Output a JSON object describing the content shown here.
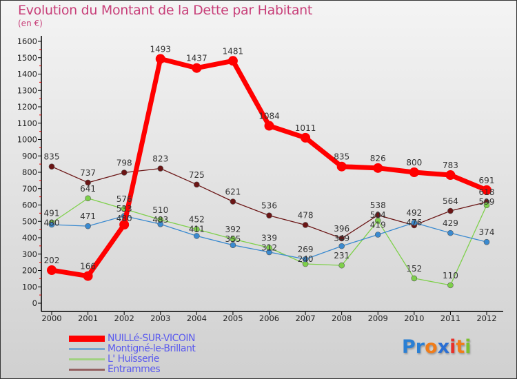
{
  "chart_data": {
    "type": "line",
    "title": "Evolution du Montant de la Dette par Habitant",
    "subtitle": "(en €)",
    "xlabel": "",
    "ylabel": "",
    "x": [
      "2000",
      "2001",
      "2002",
      "2003",
      "2004",
      "2005",
      "2006",
      "2007",
      "2008",
      "2009",
      "2010",
      "2011",
      "2012"
    ],
    "ylim": [
      0,
      1600
    ],
    "yticks": [
      0,
      100,
      200,
      300,
      400,
      500,
      600,
      700,
      800,
      900,
      1000,
      1100,
      1200,
      1300,
      1400,
      1500,
      1600
    ],
    "grid": false,
    "legend_position": "bottom-left",
    "series": [
      {
        "name": "NUILLé-SUR-VICOIN",
        "color": "#ff0000",
        "values": [
          202,
          166,
          480,
          1493,
          1437,
          1481,
          1084,
          1011,
          835,
          826,
          800,
          783,
          691
        ]
      },
      {
        "name": "Montigné-le-Brillant",
        "color": "#3a8ad0",
        "values": [
          480,
          471,
          533,
          483,
          411,
          355,
          312,
          269,
          349,
          419,
          492,
          429,
          374
        ]
      },
      {
        "name": "L' Huisserie",
        "color": "#7ed04a",
        "values": [
          491,
          641,
          576,
          510,
          452,
          392,
          339,
          240,
          231,
          504,
          152,
          110,
          599
        ]
      },
      {
        "name": "Entrammes",
        "color": "#6b1515",
        "values": [
          835,
          737,
          798,
          823,
          725,
          621,
          536,
          478,
          396,
          538,
          476,
          564,
          618
        ]
      }
    ]
  },
  "logo": {
    "text": "Proxiti",
    "letters": [
      "P",
      "r",
      "o",
      "x",
      "i",
      "t",
      "i"
    ],
    "colors": [
      "#2a7fd4",
      "#2a7fd4",
      "#f07c1a",
      "#2a6fd4",
      "#e8302a",
      "#f07c1a",
      "#7ac030"
    ]
  }
}
